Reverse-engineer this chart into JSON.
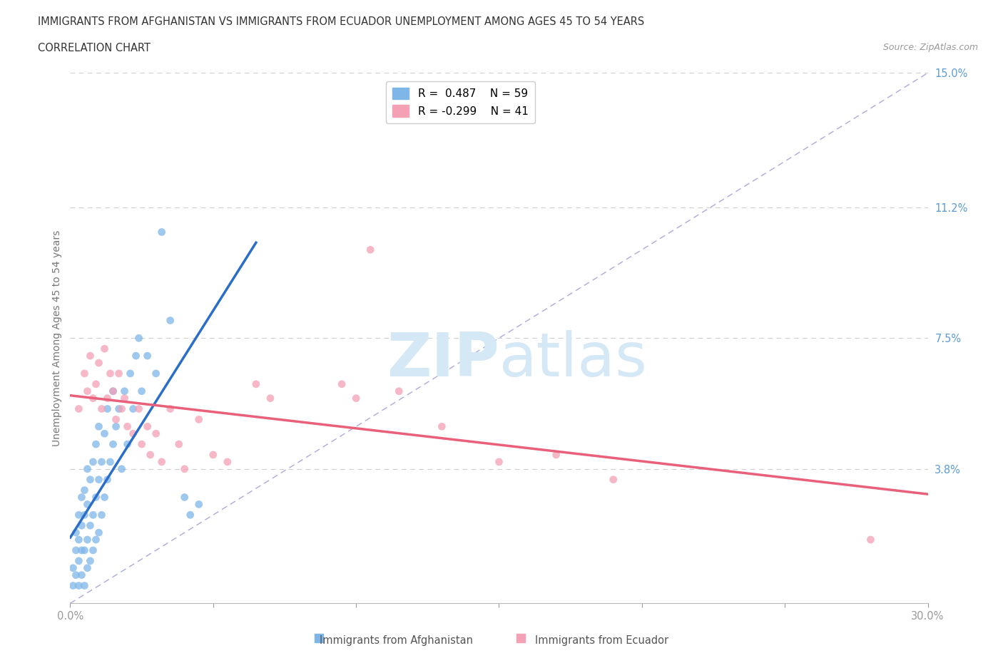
{
  "title_line1": "IMMIGRANTS FROM AFGHANISTAN VS IMMIGRANTS FROM ECUADOR UNEMPLOYMENT AMONG AGES 45 TO 54 YEARS",
  "title_line2": "CORRELATION CHART",
  "source_text": "Source: ZipAtlas.com",
  "ylabel": "Unemployment Among Ages 45 to 54 years",
  "xlim": [
    0.0,
    0.3
  ],
  "ylim": [
    0.0,
    0.15
  ],
  "xtick_vals": [
    0.0,
    0.05,
    0.1,
    0.15,
    0.2,
    0.25,
    0.3
  ],
  "xtick_labels": [
    "0.0%",
    "",
    "",
    "",
    "",
    "",
    "30.0%"
  ],
  "ytick_vals": [
    0.0,
    0.038,
    0.075,
    0.112,
    0.15
  ],
  "ytick_labels": [
    "",
    "3.8%",
    "7.5%",
    "11.2%",
    "15.0%"
  ],
  "afghanistan_color": "#7EB6E8",
  "ecuador_color": "#F4A0B5",
  "afghanistan_trend_color": "#2B6EC8",
  "ecuador_trend_color": "#E8607A",
  "afghanistan_R": 0.487,
  "afghanistan_N": 59,
  "ecuador_R": -0.299,
  "ecuador_N": 41,
  "legend_label_afg": "Immigrants from Afghanistan",
  "legend_label_ecu": "Immigrants from Ecuador",
  "background_color": "#ffffff",
  "grid_color": "#bbbbbb",
  "tick_label_color": "#5B9BD5",
  "axis_label_color": "#777777",
  "title_color": "#333333",
  "diag_line_color": "#aaaadd",
  "watermark_color": "#d5e8f5",
  "afghanistan_scatter": [
    [
      0.001,
      0.005
    ],
    [
      0.001,
      0.01
    ],
    [
      0.002,
      0.008
    ],
    [
      0.002,
      0.015
    ],
    [
      0.002,
      0.02
    ],
    [
      0.003,
      0.005
    ],
    [
      0.003,
      0.012
    ],
    [
      0.003,
      0.018
    ],
    [
      0.003,
      0.025
    ],
    [
      0.004,
      0.008
    ],
    [
      0.004,
      0.015
    ],
    [
      0.004,
      0.022
    ],
    [
      0.004,
      0.03
    ],
    [
      0.005,
      0.005
    ],
    [
      0.005,
      0.015
    ],
    [
      0.005,
      0.025
    ],
    [
      0.005,
      0.032
    ],
    [
      0.006,
      0.01
    ],
    [
      0.006,
      0.018
    ],
    [
      0.006,
      0.028
    ],
    [
      0.006,
      0.038
    ],
    [
      0.007,
      0.012
    ],
    [
      0.007,
      0.022
    ],
    [
      0.007,
      0.035
    ],
    [
      0.008,
      0.015
    ],
    [
      0.008,
      0.025
    ],
    [
      0.008,
      0.04
    ],
    [
      0.009,
      0.018
    ],
    [
      0.009,
      0.03
    ],
    [
      0.009,
      0.045
    ],
    [
      0.01,
      0.02
    ],
    [
      0.01,
      0.035
    ],
    [
      0.01,
      0.05
    ],
    [
      0.011,
      0.025
    ],
    [
      0.011,
      0.04
    ],
    [
      0.012,
      0.03
    ],
    [
      0.012,
      0.048
    ],
    [
      0.013,
      0.035
    ],
    [
      0.013,
      0.055
    ],
    [
      0.014,
      0.04
    ],
    [
      0.015,
      0.045
    ],
    [
      0.015,
      0.06
    ],
    [
      0.016,
      0.05
    ],
    [
      0.017,
      0.055
    ],
    [
      0.018,
      0.038
    ],
    [
      0.019,
      0.06
    ],
    [
      0.02,
      0.045
    ],
    [
      0.021,
      0.065
    ],
    [
      0.022,
      0.055
    ],
    [
      0.023,
      0.07
    ],
    [
      0.024,
      0.075
    ],
    [
      0.025,
      0.06
    ],
    [
      0.027,
      0.07
    ],
    [
      0.03,
      0.065
    ],
    [
      0.032,
      0.105
    ],
    [
      0.035,
      0.08
    ],
    [
      0.04,
      0.03
    ],
    [
      0.042,
      0.025
    ],
    [
      0.045,
      0.028
    ]
  ],
  "ecuador_scatter": [
    [
      0.003,
      0.055
    ],
    [
      0.005,
      0.065
    ],
    [
      0.006,
      0.06
    ],
    [
      0.007,
      0.07
    ],
    [
      0.008,
      0.058
    ],
    [
      0.009,
      0.062
    ],
    [
      0.01,
      0.068
    ],
    [
      0.011,
      0.055
    ],
    [
      0.012,
      0.072
    ],
    [
      0.013,
      0.058
    ],
    [
      0.014,
      0.065
    ],
    [
      0.015,
      0.06
    ],
    [
      0.016,
      0.052
    ],
    [
      0.017,
      0.065
    ],
    [
      0.018,
      0.055
    ],
    [
      0.019,
      0.058
    ],
    [
      0.02,
      0.05
    ],
    [
      0.022,
      0.048
    ],
    [
      0.024,
      0.055
    ],
    [
      0.025,
      0.045
    ],
    [
      0.027,
      0.05
    ],
    [
      0.028,
      0.042
    ],
    [
      0.03,
      0.048
    ],
    [
      0.032,
      0.04
    ],
    [
      0.035,
      0.055
    ],
    [
      0.038,
      0.045
    ],
    [
      0.04,
      0.038
    ],
    [
      0.045,
      0.052
    ],
    [
      0.05,
      0.042
    ],
    [
      0.055,
      0.04
    ],
    [
      0.065,
      0.062
    ],
    [
      0.07,
      0.058
    ],
    [
      0.095,
      0.062
    ],
    [
      0.1,
      0.058
    ],
    [
      0.105,
      0.1
    ],
    [
      0.115,
      0.06
    ],
    [
      0.13,
      0.05
    ],
    [
      0.15,
      0.04
    ],
    [
      0.17,
      0.042
    ],
    [
      0.19,
      0.035
    ],
    [
      0.28,
      0.018
    ]
  ]
}
